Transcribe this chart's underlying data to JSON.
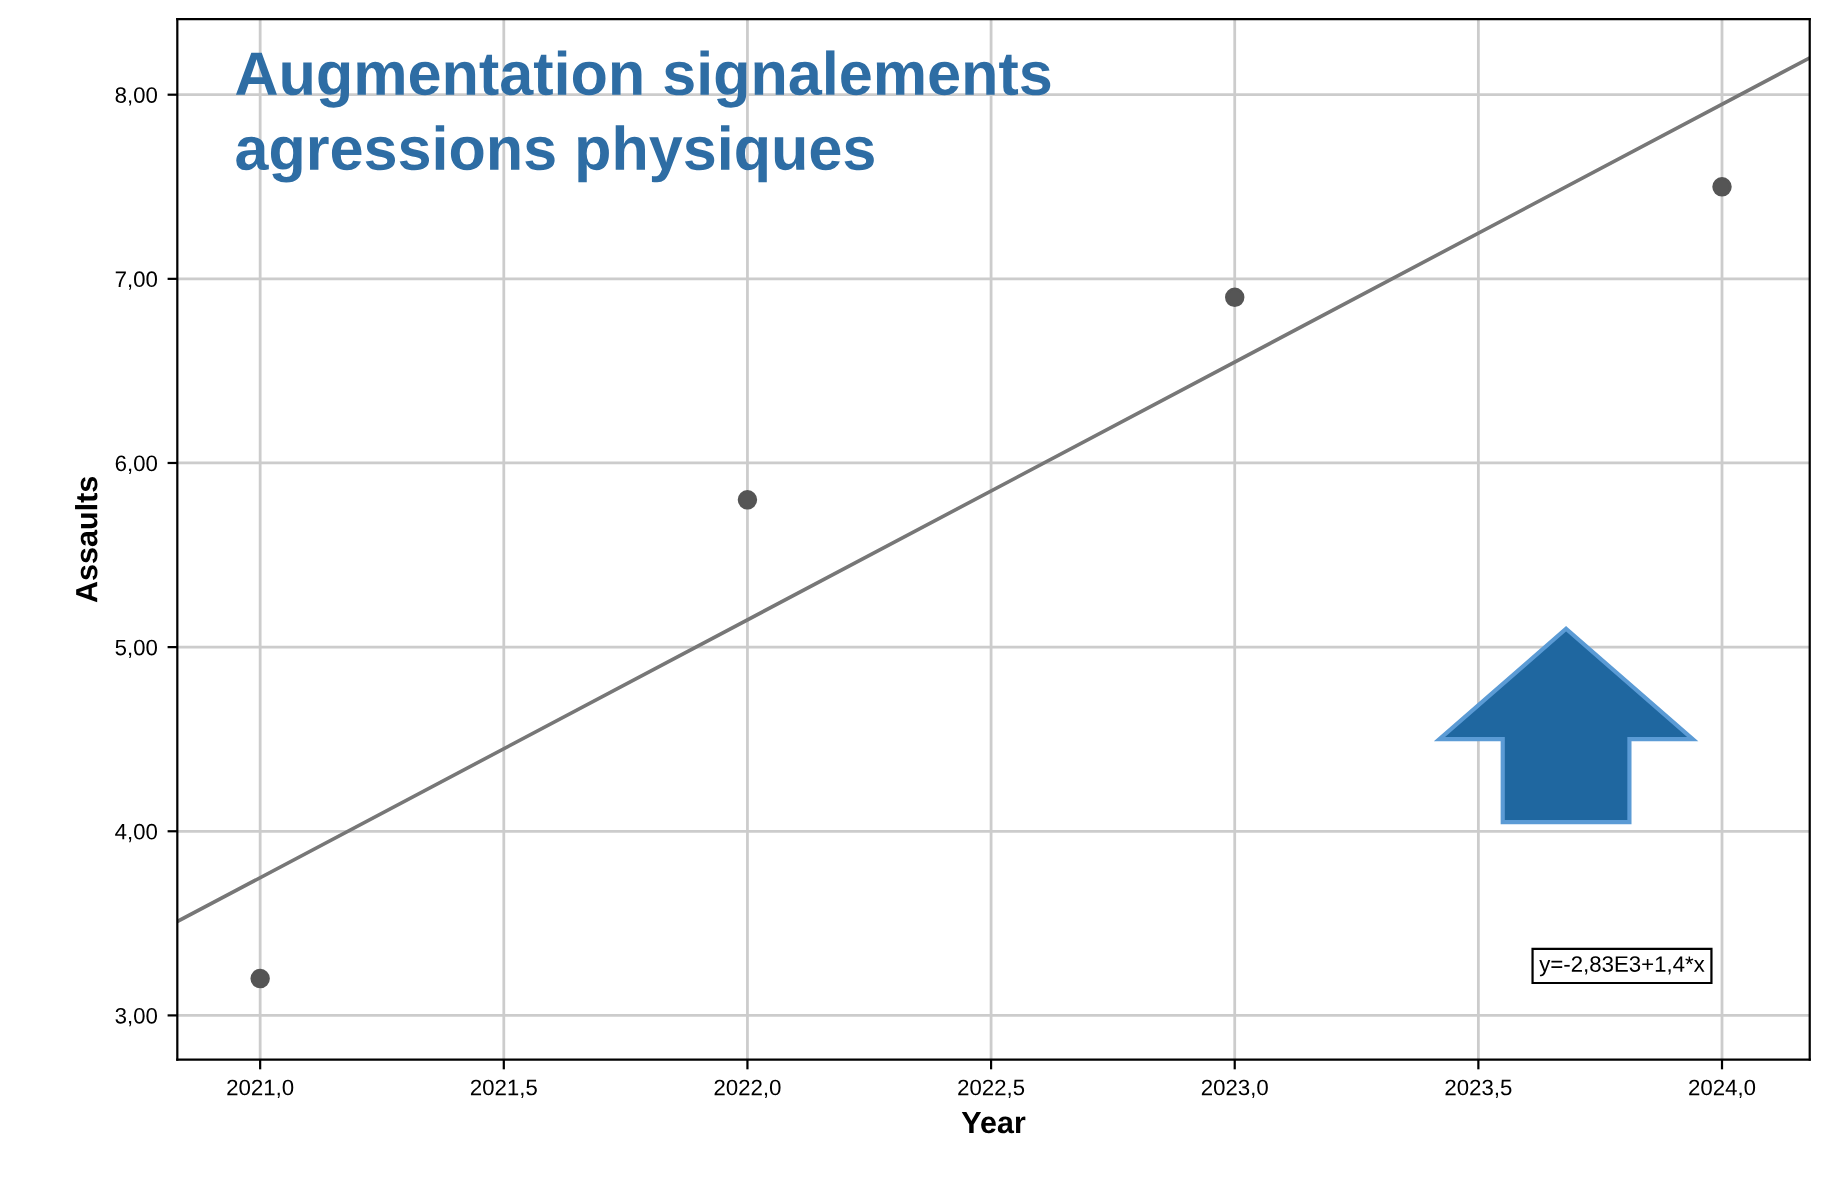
{
  "chart_data": {
    "type": "scatter",
    "title": "Augmentation signalements\nagressions physiques",
    "xlabel": "Year",
    "ylabel": "Assaults",
    "series": [
      {
        "color": "#555555",
        "x": [
          2021,
          2022,
          2023,
          2024
        ],
        "values": [
          3.2,
          5.8,
          6.9,
          7.5
        ]
      },
      {
        "type": "line",
        "color": "#777777",
        "x": [
          2020.83,
          2024.18
        ],
        "values": [
          3.51,
          8.2
        ],
        "marker": "none"
      }
    ],
    "annotations": [
      "y=-2,83E3+1,4*x"
    ],
    "xlim": [
      2020.83,
      2024.18
    ],
    "ylim": [
      2.76,
      8.41
    ],
    "xticks": [
      {
        "value": 2021,
        "label": "2021,0"
      },
      {
        "value": 2021.5,
        "label": "2021,5"
      },
      {
        "value": 2022,
        "label": "2022,0"
      },
      {
        "value": 2022.5,
        "label": "2022,5"
      },
      {
        "value": 2023,
        "label": "2023,0"
      },
      {
        "value": 2023.5,
        "label": "2023,5"
      },
      {
        "value": 2024,
        "label": "2024,0"
      }
    ],
    "yticks": [
      {
        "value": 3,
        "label": "3,00"
      },
      {
        "value": 4,
        "label": "4,00"
      },
      {
        "value": 5,
        "label": "5,00"
      },
      {
        "value": 6,
        "label": "6,00"
      },
      {
        "value": 7,
        "label": "7,00"
      },
      {
        "value": 8,
        "label": "8,00"
      }
    ],
    "grid": true,
    "marker": "circle",
    "legend": false
  }
}
